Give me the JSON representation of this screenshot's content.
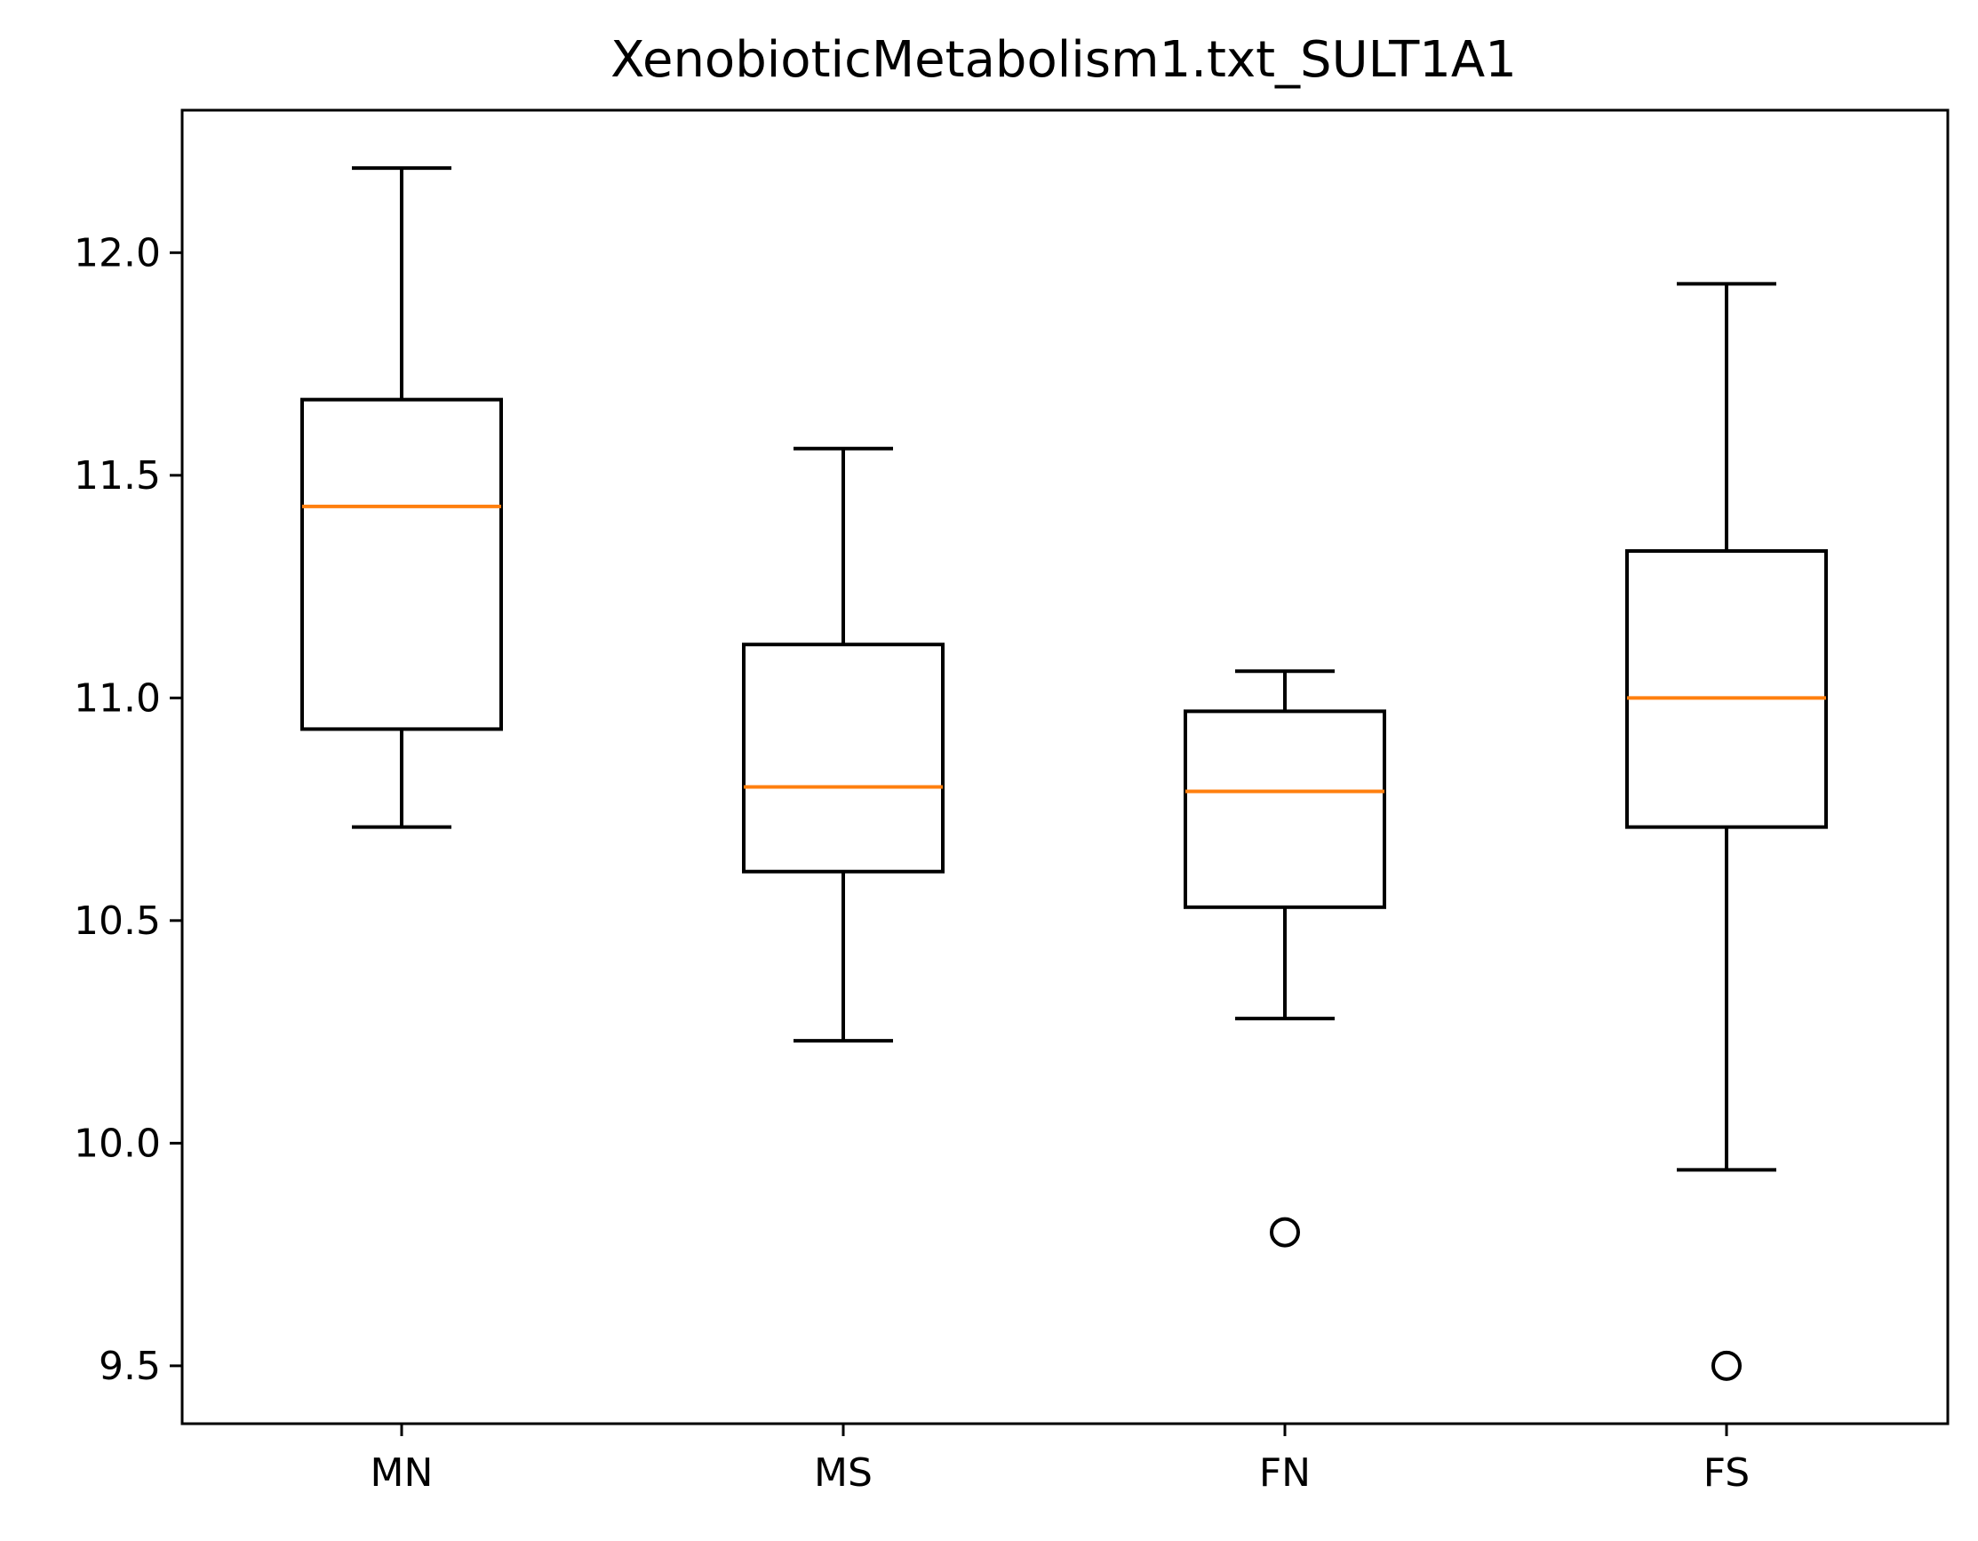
{
  "chart_data": {
    "type": "box",
    "title": "XenobioticMetabolism1.txt_SULT1A1",
    "xlabel": "",
    "ylabel": "",
    "ylim": [
      9.37,
      12.32
    ],
    "yticks": [
      9.5,
      10.0,
      10.5,
      11.0,
      11.5,
      12.0
    ],
    "ytick_labels": [
      "9.5",
      "10.0",
      "10.5",
      "11.0",
      "11.5",
      "12.0"
    ],
    "grid": false,
    "median_color": "#ff7f0e",
    "box_color": "#000000",
    "categories": [
      "MN",
      "MS",
      "FN",
      "FS"
    ],
    "boxes": [
      {
        "label": "MN",
        "whisker_low": 10.71,
        "q1": 10.93,
        "median": 11.43,
        "q3": 11.67,
        "whisker_high": 12.19,
        "fliers": []
      },
      {
        "label": "MS",
        "whisker_low": 10.23,
        "q1": 10.61,
        "median": 10.8,
        "q3": 11.12,
        "whisker_high": 11.56,
        "fliers": []
      },
      {
        "label": "FN",
        "whisker_low": 10.28,
        "q1": 10.53,
        "median": 10.79,
        "q3": 10.97,
        "whisker_high": 11.06,
        "fliers": [
          9.8
        ]
      },
      {
        "label": "FS",
        "whisker_low": 9.94,
        "q1": 10.71,
        "median": 11.0,
        "q3": 11.33,
        "whisker_high": 11.93,
        "fliers": [
          9.5
        ]
      }
    ]
  }
}
